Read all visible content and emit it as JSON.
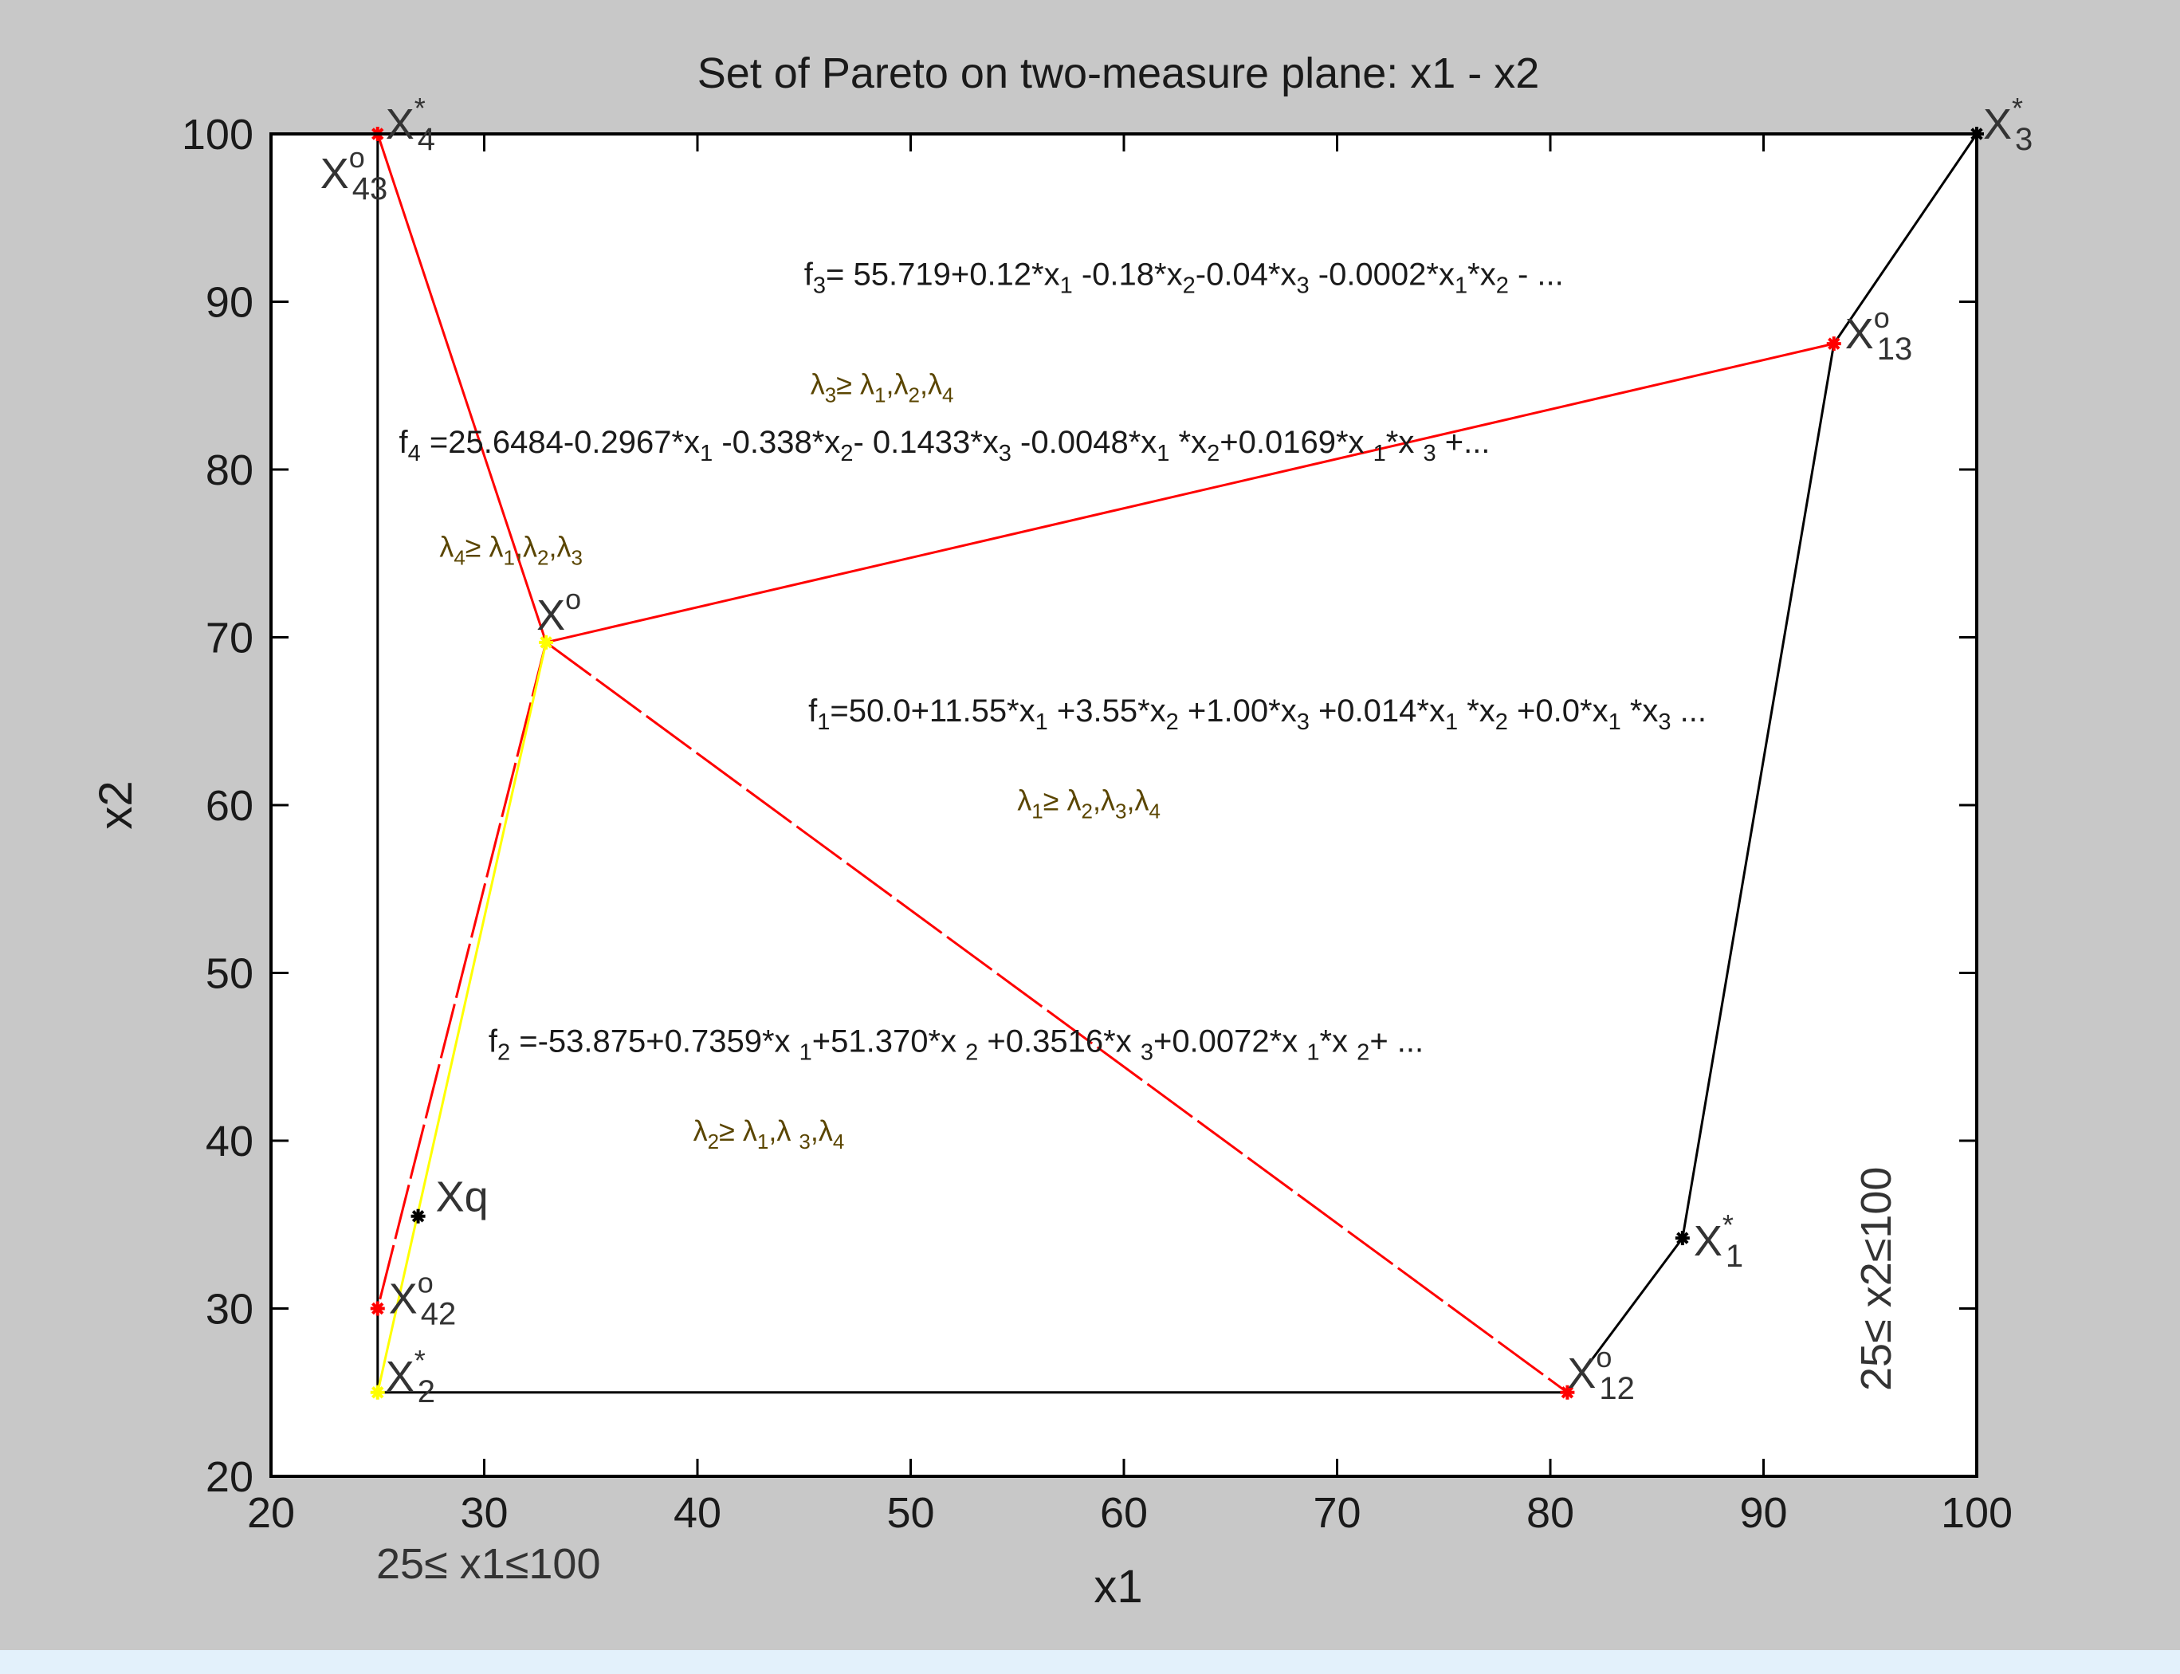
{
  "colors": {
    "figure_bg": "#c8c8c8",
    "bottom_bar": "#e3f1fb",
    "axes_bg": "#ffffff",
    "frame": "#000000",
    "pareto_front": "#000000",
    "red_lines": "#ff0000",
    "yellow_line": "#ffff00",
    "formula_text": "#1a1a1a",
    "lambda_text": "#5a4500",
    "constraint_text": "#333333"
  },
  "chart_data": {
    "type": "line",
    "title": "Set of Pareto on two-measure plane: x1 - x2",
    "xlabel": "x1",
    "ylabel": "x2",
    "xlim": [
      20,
      100
    ],
    "ylim": [
      20,
      100
    ],
    "xticks": [
      20,
      30,
      40,
      50,
      60,
      70,
      80,
      90,
      100
    ],
    "yticks": [
      20,
      30,
      40,
      50,
      60,
      70,
      80,
      90,
      100
    ],
    "grid": false,
    "series": [
      {
        "color": "#000000",
        "style": "solid",
        "points": [
          [
            25,
            100
          ],
          [
            25,
            25
          ],
          [
            80.8,
            25
          ],
          [
            86.2,
            34.2
          ],
          [
            93.3,
            87.5
          ],
          [
            100,
            100
          ]
        ]
      },
      {
        "color": "#ff0000",
        "style": "solid",
        "points": [
          [
            25,
            100
          ],
          [
            32.9,
            69.7
          ],
          [
            93.3,
            87.5
          ]
        ]
      },
      {
        "color": "#ff0000",
        "style": "dashed",
        "points": [
          [
            32.9,
            69.7
          ],
          [
            80.8,
            25
          ]
        ]
      },
      {
        "color": "#ff0000",
        "style": "dashed",
        "points": [
          [
            32.9,
            69.7
          ],
          [
            25,
            30
          ]
        ]
      },
      {
        "color": "#ffff00",
        "style": "solid",
        "points": [
          [
            25,
            25
          ],
          [
            32.9,
            69.7
          ]
        ]
      }
    ],
    "markers": [
      {
        "x": 25,
        "y": 100,
        "color": "#ff0000"
      },
      {
        "x": 100,
        "y": 100,
        "color": "#000000"
      },
      {
        "x": 93.3,
        "y": 87.5,
        "color": "#ff0000"
      },
      {
        "x": 32.9,
        "y": 69.7,
        "color": "#ffff00"
      },
      {
        "x": 26.9,
        "y": 35.5,
        "color": "#000000"
      },
      {
        "x": 86.2,
        "y": 34.2,
        "color": "#000000"
      },
      {
        "x": 25,
        "y": 30,
        "color": "#ff0000"
      },
      {
        "x": 25,
        "y": 25,
        "color": "#ffff00"
      },
      {
        "x": 80.8,
        "y": 25,
        "color": "#ff0000"
      }
    ],
    "point_labels": [
      {
        "base": "X",
        "sup": "*",
        "sub": "4",
        "x": 25,
        "y": 100
      },
      {
        "base": "X",
        "sup": "o",
        "sub": "43",
        "x": 25,
        "y": 100
      },
      {
        "base": "X",
        "sup": "*",
        "sub": "3",
        "x": 100,
        "y": 100
      },
      {
        "base": "X",
        "sup": "o",
        "sub": "13",
        "x": 93.3,
        "y": 87.5
      },
      {
        "base": "X",
        "sup": "o",
        "sub": "",
        "x": 32.9,
        "y": 69.7
      },
      {
        "base": "Xq",
        "sup": "",
        "sub": "",
        "x": 26.9,
        "y": 35.5
      },
      {
        "base": "X",
        "sup": "*",
        "sub": "1",
        "x": 86.2,
        "y": 34.2
      },
      {
        "base": "X",
        "sup": "o",
        "sub": "42",
        "x": 25,
        "y": 30
      },
      {
        "base": "X",
        "sup": "*",
        "sub": "2",
        "x": 25,
        "y": 25
      },
      {
        "base": "X",
        "sup": "o",
        "sub": "12",
        "x": 80.8,
        "y": 25
      }
    ],
    "annotations": {
      "f3": {
        "segments": [
          [
            "f",
            ""
          ],
          [
            "3",
            "sub"
          ],
          [
            "= 55.719+0.12*x",
            ""
          ],
          [
            "1",
            "sub"
          ],
          [
            " -0.18*x",
            ""
          ],
          [
            "2",
            "sub"
          ],
          [
            "-0.04*x",
            ""
          ],
          [
            "3",
            "sub"
          ],
          [
            " -0.0002*x",
            ""
          ],
          [
            "1",
            "sub"
          ],
          [
            "*x",
            ""
          ],
          [
            "2",
            "sub"
          ],
          [
            " - ...",
            ""
          ]
        ],
        "x": 45,
        "y": 91
      },
      "lambda3": {
        "segments": [
          [
            "λ",
            ""
          ],
          [
            "3",
            "sub"
          ],
          [
            "≥ λ",
            ""
          ],
          [
            "1",
            "sub"
          ],
          [
            ",λ",
            ""
          ],
          [
            "2",
            "sub"
          ],
          [
            ",λ",
            ""
          ],
          [
            "4",
            "sub"
          ]
        ],
        "x": 45.3,
        "y": 84.5
      },
      "f4": {
        "segments": [
          [
            "f",
            ""
          ],
          [
            "4",
            "sub"
          ],
          [
            " =25.6484-0.2967*x",
            ""
          ],
          [
            "1",
            "sub"
          ],
          [
            " -0.338*x",
            ""
          ],
          [
            "2",
            "sub"
          ],
          [
            "-  0.1433*x",
            ""
          ],
          [
            "3",
            "sub"
          ],
          [
            " -0.0048*x",
            ""
          ],
          [
            "1",
            "sub"
          ],
          [
            " *x",
            ""
          ],
          [
            "2",
            "sub"
          ],
          [
            "+0.0169*x ",
            ""
          ],
          [
            "1",
            "sub"
          ],
          [
            "*x ",
            ""
          ],
          [
            "3",
            "sub"
          ],
          [
            " +...",
            ""
          ]
        ],
        "x": 26,
        "y": 81
      },
      "lambda4": {
        "segments": [
          [
            "λ",
            ""
          ],
          [
            "4",
            "sub"
          ],
          [
            "≥ λ",
            ""
          ],
          [
            "1",
            "sub"
          ],
          [
            ",λ",
            ""
          ],
          [
            "2",
            "sub"
          ],
          [
            ",λ",
            ""
          ],
          [
            "3",
            "sub"
          ]
        ],
        "x": 27.9,
        "y": 74.8
      },
      "f1": {
        "segments": [
          [
            "f",
            ""
          ],
          [
            "1",
            "sub"
          ],
          [
            "=50.0+11.55*x",
            ""
          ],
          [
            "1",
            "sub"
          ],
          [
            " +3.55*x",
            ""
          ],
          [
            "2",
            "sub"
          ],
          [
            " +1.00*x",
            ""
          ],
          [
            "3",
            "sub"
          ],
          [
            "  +0.014*x",
            ""
          ],
          [
            "1",
            "sub"
          ],
          [
            " *x",
            ""
          ],
          [
            "2",
            "sub"
          ],
          [
            " +0.0*x",
            ""
          ],
          [
            "1",
            "sub"
          ],
          [
            " *x",
            ""
          ],
          [
            "3",
            "sub"
          ],
          [
            " ...",
            ""
          ]
        ],
        "x": 45.2,
        "y": 65
      },
      "lambda1": {
        "segments": [
          [
            "λ",
            ""
          ],
          [
            "1",
            "sub"
          ],
          [
            "≥ λ",
            ""
          ],
          [
            "2",
            "sub"
          ],
          [
            ",λ",
            ""
          ],
          [
            "3",
            "sub"
          ],
          [
            ",λ",
            ""
          ],
          [
            "4",
            "sub"
          ]
        ],
        "x": 55,
        "y": 59.7
      },
      "f2": {
        "segments": [
          [
            "f",
            ""
          ],
          [
            "2",
            "sub"
          ],
          [
            " =-53.875+0.7359*x ",
            ""
          ],
          [
            "1",
            "sub"
          ],
          [
            "+51.370*x ",
            ""
          ],
          [
            "2",
            "sub"
          ],
          [
            "  +0.3516*x ",
            ""
          ],
          [
            "3",
            "sub"
          ],
          [
            "+0.0072*x ",
            ""
          ],
          [
            "1",
            "sub"
          ],
          [
            "*x ",
            ""
          ],
          [
            "2",
            "sub"
          ],
          [
            "+ ...",
            ""
          ]
        ],
        "x": 30.2,
        "y": 45.3
      },
      "lambda2": {
        "segments": [
          [
            "λ",
            ""
          ],
          [
            "2",
            "sub"
          ],
          [
            "≥ λ",
            ""
          ],
          [
            "1",
            "sub"
          ],
          [
            ",λ  ",
            ""
          ],
          [
            "3",
            "sub"
          ],
          [
            ",λ",
            ""
          ],
          [
            "4",
            "sub"
          ]
        ],
        "x": 39.8,
        "y": 40
      }
    },
    "constraints": {
      "x1_range": "25≤ x1≤100",
      "x2_range": "25≤ x2≤100"
    }
  }
}
